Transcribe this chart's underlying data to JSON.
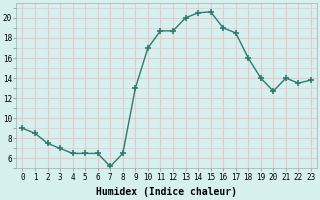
{
  "x": [
    0,
    1,
    2,
    3,
    4,
    5,
    6,
    7,
    8,
    9,
    10,
    11,
    12,
    13,
    14,
    15,
    16,
    17,
    18,
    19,
    20,
    21,
    22,
    23
  ],
  "y": [
    9.0,
    8.5,
    7.5,
    7.0,
    6.5,
    6.5,
    6.5,
    5.2,
    6.5,
    13.0,
    17.0,
    18.7,
    18.7,
    20.0,
    20.5,
    20.6,
    19.0,
    18.5,
    16.0,
    14.0,
    12.7,
    14.0,
    13.5,
    13.8
  ],
  "line_color": "#2d7a6e",
  "marker": "+",
  "marker_size": 4,
  "line_width": 1.0,
  "background_color": "#d6f0f0",
  "grid_color": "#e8c8c8",
  "xlabel": "Humidex (Indice chaleur)",
  "xlabel_fontsize": 7,
  "yticks": [
    6,
    8,
    10,
    12,
    14,
    16,
    18,
    20
  ],
  "ylim": [
    5.0,
    21.5
  ],
  "xlim": [
    -0.5,
    23.5
  ],
  "xtick_labels": [
    "0",
    "1",
    "2",
    "3",
    "4",
    "5",
    "6",
    "7",
    "8",
    "9",
    "10",
    "11",
    "12",
    "13",
    "14",
    "15",
    "16",
    "17",
    "18",
    "19",
    "20",
    "21",
    "22",
    "23"
  ],
  "tick_fontsize": 5.5
}
